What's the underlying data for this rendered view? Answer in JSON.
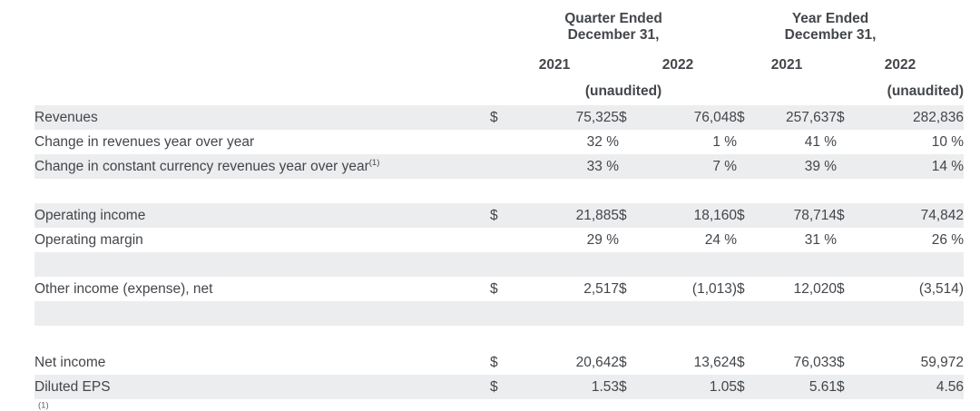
{
  "colors": {
    "row_shade": "#ECEDEF",
    "text": "#43464a",
    "background": "#ffffff"
  },
  "table": {
    "header": {
      "quarter_group": {
        "line1": "Quarter Ended",
        "line2": "December 31,",
        "year_left": "2021",
        "year_right": "2022",
        "unaudited": "(unaudited)"
      },
      "year_group": {
        "line1": "Year Ended",
        "line2": "December 31,",
        "year_left": "2021",
        "year_right": "2022",
        "unaudited": "(unaudited)"
      }
    },
    "rows": [
      {
        "label": "Revenues",
        "shaded": true,
        "cells": [
          [
            "$",
            "75,325"
          ],
          [
            "$",
            "76,048"
          ],
          [
            "$",
            "257,637"
          ],
          [
            "$",
            "282,836"
          ]
        ]
      },
      {
        "label": "Change in revenues year over year",
        "shaded": false,
        "cells": [
          [
            "",
            "32 %"
          ],
          [
            "",
            "1 %"
          ],
          [
            "",
            "41 %"
          ],
          [
            "",
            "10 %"
          ]
        ]
      },
      {
        "label": "Change in constant currency revenues year over year",
        "sup": "(1)",
        "shaded": true,
        "cells": [
          [
            "",
            "33 %"
          ],
          [
            "",
            "7 %"
          ],
          [
            "",
            "39 %"
          ],
          [
            "",
            "14 %"
          ]
        ]
      },
      {
        "spacer": true,
        "shaded": false
      },
      {
        "label": "Operating income",
        "shaded": true,
        "cells": [
          [
            "$",
            "21,885"
          ],
          [
            "$",
            "18,160"
          ],
          [
            "$",
            "78,714"
          ],
          [
            "$",
            "74,842"
          ]
        ]
      },
      {
        "label": "Operating margin",
        "shaded": false,
        "cells": [
          [
            "",
            "29 %"
          ],
          [
            "",
            "24 %"
          ],
          [
            "",
            "31 %"
          ],
          [
            "",
            "26 %"
          ]
        ]
      },
      {
        "spacer": true,
        "shaded": true
      },
      {
        "label": "Other income (expense), net",
        "shaded": false,
        "cells": [
          [
            "$",
            "2,517"
          ],
          [
            "$",
            "(1,013)"
          ],
          [
            "$",
            "12,020"
          ],
          [
            "$",
            "(3,514)"
          ]
        ]
      },
      {
        "spacer": true,
        "shaded": true
      },
      {
        "spacer": true,
        "shaded": false
      },
      {
        "label": "Net income",
        "shaded": false,
        "cells": [
          [
            "$",
            "20,642"
          ],
          [
            "$",
            "13,624"
          ],
          [
            "$",
            "76,033"
          ],
          [
            "$",
            "59,972"
          ]
        ]
      },
      {
        "label": "Diluted EPS",
        "shaded": true,
        "cells": [
          [
            "$",
            "1.53"
          ],
          [
            "$",
            "1.05"
          ],
          [
            "$",
            "5.61"
          ],
          [
            "$",
            "4.56"
          ]
        ]
      }
    ]
  },
  "footnote_marker": "(1)"
}
